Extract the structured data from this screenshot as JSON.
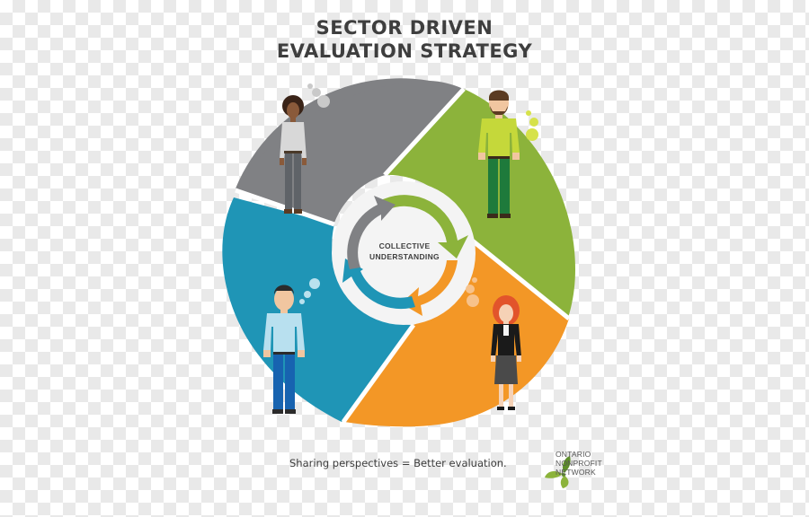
{
  "title": {
    "line1": "SECTOR DRIVEN",
    "line2": "EVALUATION STRATEGY"
  },
  "center": {
    "line1": "COLLECTIVE",
    "line2": "UNDERSTANDING"
  },
  "tagline": "Sharing perspectives = Better evaluation.",
  "logo": {
    "line1": "ONTARIO",
    "line2": "NONPROFIT",
    "line3": "NETWORK",
    "icon": "leaf-icon"
  },
  "colors": {
    "gray": "#808184",
    "green": "#8cb33b",
    "orange": "#f39726",
    "blue": "#1f95b6",
    "inner_ring": "#f2f2f2",
    "title": "#3e3e3e"
  },
  "figures": [
    {
      "segment": "gray",
      "icon": "person-woman-icon"
    },
    {
      "segment": "green",
      "icon": "person-bearded-man-icon"
    },
    {
      "segment": "orange",
      "icon": "person-redhead-woman-icon"
    },
    {
      "segment": "blue",
      "icon": "person-man-icon"
    }
  ]
}
